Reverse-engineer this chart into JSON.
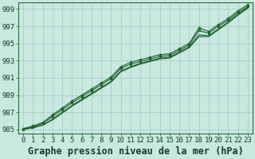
{
  "background_color": "#c8e8e0",
  "grid_color": "#a8d0c8",
  "line_color": "#1a5c2a",
  "title": "Graphe pression niveau de la mer (hPa)",
  "xlim": [
    -0.5,
    23.5
  ],
  "ylim": [
    984.5,
    999.8
  ],
  "yticks": [
    985,
    987,
    989,
    991,
    993,
    995,
    997,
    999
  ],
  "xticks": [
    0,
    1,
    2,
    3,
    4,
    5,
    6,
    7,
    8,
    9,
    10,
    11,
    12,
    13,
    14,
    15,
    16,
    17,
    18,
    19,
    20,
    21,
    22,
    23
  ],
  "x": [
    0,
    1,
    2,
    3,
    4,
    5,
    6,
    7,
    8,
    9,
    10,
    11,
    12,
    13,
    14,
    15,
    16,
    17,
    18,
    19,
    20,
    21,
    22,
    23
  ],
  "lines": [
    [
      985.0,
      985.3,
      985.7,
      986.5,
      987.3,
      988.1,
      988.8,
      989.5,
      990.2,
      990.9,
      992.1,
      992.6,
      992.9,
      993.2,
      993.5,
      993.6,
      994.2,
      994.8,
      996.5,
      996.2,
      997.0,
      997.7,
      998.6,
      999.3
    ],
    [
      985.0,
      985.2,
      985.5,
      986.2,
      987.0,
      987.8,
      988.5,
      989.2,
      989.9,
      990.6,
      991.8,
      992.3,
      992.7,
      993.0,
      993.3,
      993.4,
      994.0,
      994.6,
      996.0,
      995.9,
      996.7,
      997.5,
      998.4,
      999.2
    ],
    [
      985.0,
      985.2,
      985.5,
      986.1,
      986.9,
      987.7,
      988.4,
      989.1,
      989.8,
      990.5,
      991.7,
      992.2,
      992.6,
      992.9,
      993.2,
      993.3,
      993.9,
      994.5,
      995.8,
      995.8,
      996.6,
      997.4,
      998.3,
      999.1
    ],
    [
      985.1,
      985.4,
      985.8,
      986.7,
      987.5,
      988.3,
      989.0,
      989.7,
      990.4,
      991.1,
      992.3,
      992.8,
      993.1,
      993.4,
      993.7,
      993.8,
      994.4,
      995.0,
      996.8,
      996.4,
      997.2,
      997.9,
      998.8,
      999.5
    ]
  ],
  "marker_line_indices": [
    0,
    3
  ],
  "tick_fontsize": 6.5,
  "title_fontsize": 8.5
}
